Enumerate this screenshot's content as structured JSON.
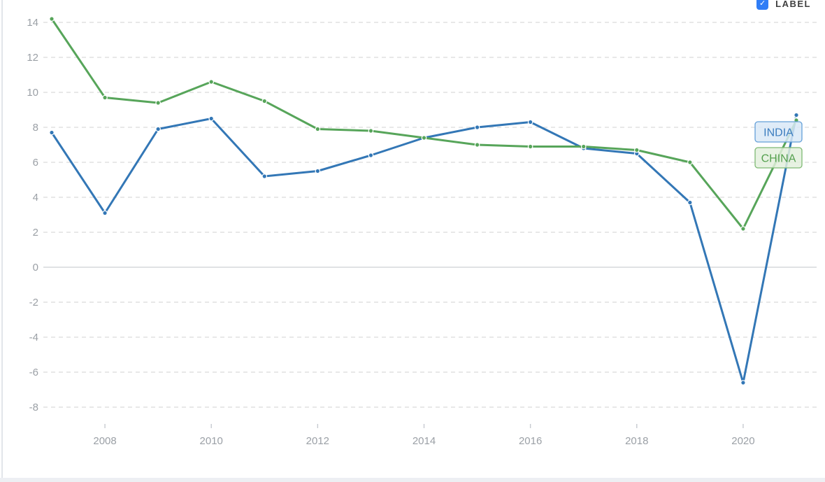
{
  "header": {
    "label_toggle": "LABEL"
  },
  "colors": {
    "india_line": "#3377b6",
    "india_label_bg": "#d9e8f7",
    "india_label_border": "#64a0d8",
    "india_label_text": "#3c7dbf",
    "china_line": "#57a55a",
    "china_label_bg": "#e2f0dc",
    "china_label_border": "#7eb973",
    "china_label_text": "#55a04f",
    "axis_label": "#9ba0a6",
    "gridline": "#dadada",
    "zero_line": "#d5d9db",
    "tick": "#c6cad0",
    "toggle_blue": "#2f7df6"
  },
  "chart_data": {
    "type": "line",
    "x": [
      2007,
      2008,
      2009,
      2010,
      2011,
      2012,
      2013,
      2014,
      2015,
      2016,
      2017,
      2018,
      2019,
      2020,
      2021
    ],
    "series": [
      {
        "name": "INDIA",
        "values": [
          7.7,
          3.1,
          7.9,
          8.5,
          5.2,
          5.5,
          6.4,
          7.4,
          8.0,
          8.3,
          6.8,
          6.5,
          3.7,
          -6.6,
          8.7
        ]
      },
      {
        "name": "CHINA",
        "values": [
          14.2,
          9.7,
          9.4,
          10.6,
          9.5,
          7.9,
          7.8,
          7.4,
          7.0,
          6.9,
          6.9,
          6.7,
          6.0,
          2.2,
          8.4
        ]
      }
    ],
    "xticks": [
      2008,
      2010,
      2012,
      2014,
      2016,
      2018,
      2020
    ],
    "yticks": [
      14,
      12,
      10,
      8,
      6,
      4,
      2,
      0,
      -2,
      -4,
      -6,
      -8
    ],
    "ylim": [
      -8.8,
      14.8
    ],
    "xlim": [
      2006.85,
      2021.4
    ],
    "title": "",
    "xlabel": "",
    "ylabel": "",
    "grid": "horizontal-dashed, solid zero line",
    "legend_position": "end-of-line labels at right"
  }
}
